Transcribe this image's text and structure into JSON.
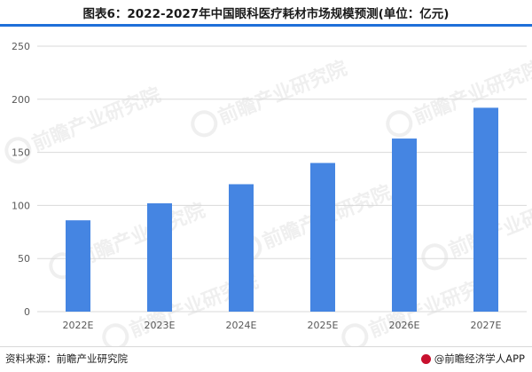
{
  "header": {
    "title": "图表6：2022-2027年中国眼科医疗耗材市场规模预测(单位：亿元)"
  },
  "footer": {
    "source": "资料来源：前瞻产业研究院",
    "credit": "@前瞻经济学人APP"
  },
  "watermark": {
    "text": "前瞻产业研究院"
  },
  "colors": {
    "bar": "#4585e2",
    "grid": "#d9d9d9",
    "accent": "#1e6fd9"
  },
  "chart_data": {
    "type": "bar",
    "title": "",
    "xlabel": "",
    "ylabel": "",
    "categories": [
      "2022E",
      "2023E",
      "2024E",
      "2025E",
      "2026E",
      "2027E"
    ],
    "values": [
      86,
      102,
      120,
      140,
      163,
      192
    ],
    "ylim": [
      0,
      250
    ],
    "yticks": [
      0,
      50,
      100,
      150,
      200,
      250
    ],
    "grid": true,
    "legend": "none"
  }
}
